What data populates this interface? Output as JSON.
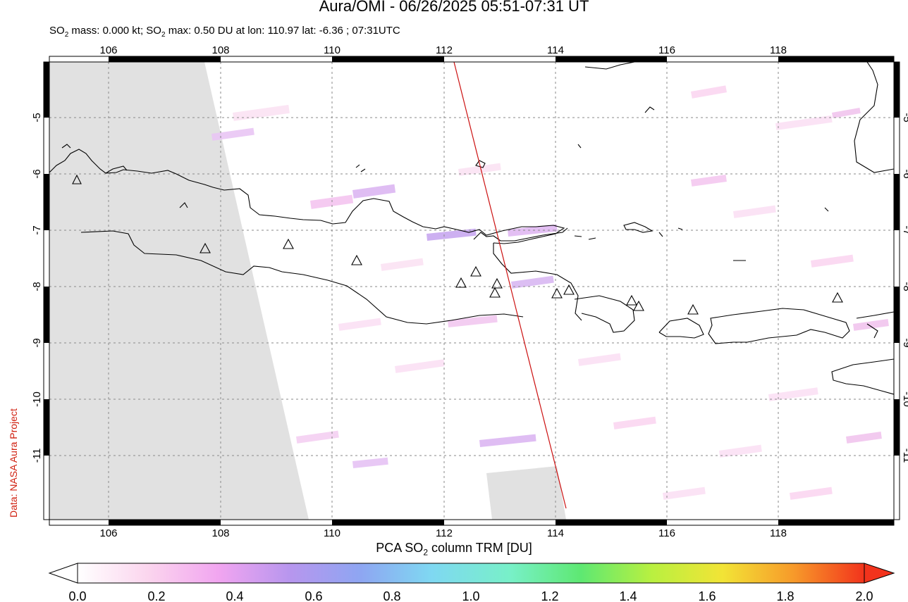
{
  "header": {
    "title": "Aura/OMI - 06/26/2025 05:51-07:31 UT",
    "subtitle_prefix": "SO",
    "subtitle_sub1": "2",
    "subtitle_mid": " mass: 0.000 kt; SO",
    "subtitle_sub2": "2",
    "subtitle_rest": " max: 0.50 DU at lon: 110.97 lat: -6.36 ; 07:31UTC"
  },
  "credit": "Data: NASA Aura Project",
  "map": {
    "lon_ticks": [
      "106",
      "108",
      "110",
      "112",
      "114",
      "116",
      "118"
    ],
    "lat_ticks": [
      "-5",
      "-6",
      "-7",
      "-8",
      "-9",
      "-10",
      "-11"
    ],
    "no_data_color": "#e1e1e1",
    "coast_color": "#000000",
    "track_color": "#cc1111",
    "volcano_marker": "triangle-outline"
  },
  "colorbar": {
    "title_prefix": "PCA SO",
    "title_sub": "2",
    "title_rest": " column TRM [DU]",
    "tick_labels": [
      "0.0",
      "0.2",
      "0.4",
      "0.6",
      "0.8",
      "1.0",
      "1.2",
      "1.4",
      "1.6",
      "1.8",
      "2.0"
    ],
    "stops": [
      "#ffffff",
      "#fbd5ee",
      "#f1a5f0",
      "#b796ee",
      "#8ea6f2",
      "#7fd8f2",
      "#78f0c8",
      "#5ee872",
      "#b9f040",
      "#f2e436",
      "#f79a2a",
      "#f2331c"
    ]
  }
}
